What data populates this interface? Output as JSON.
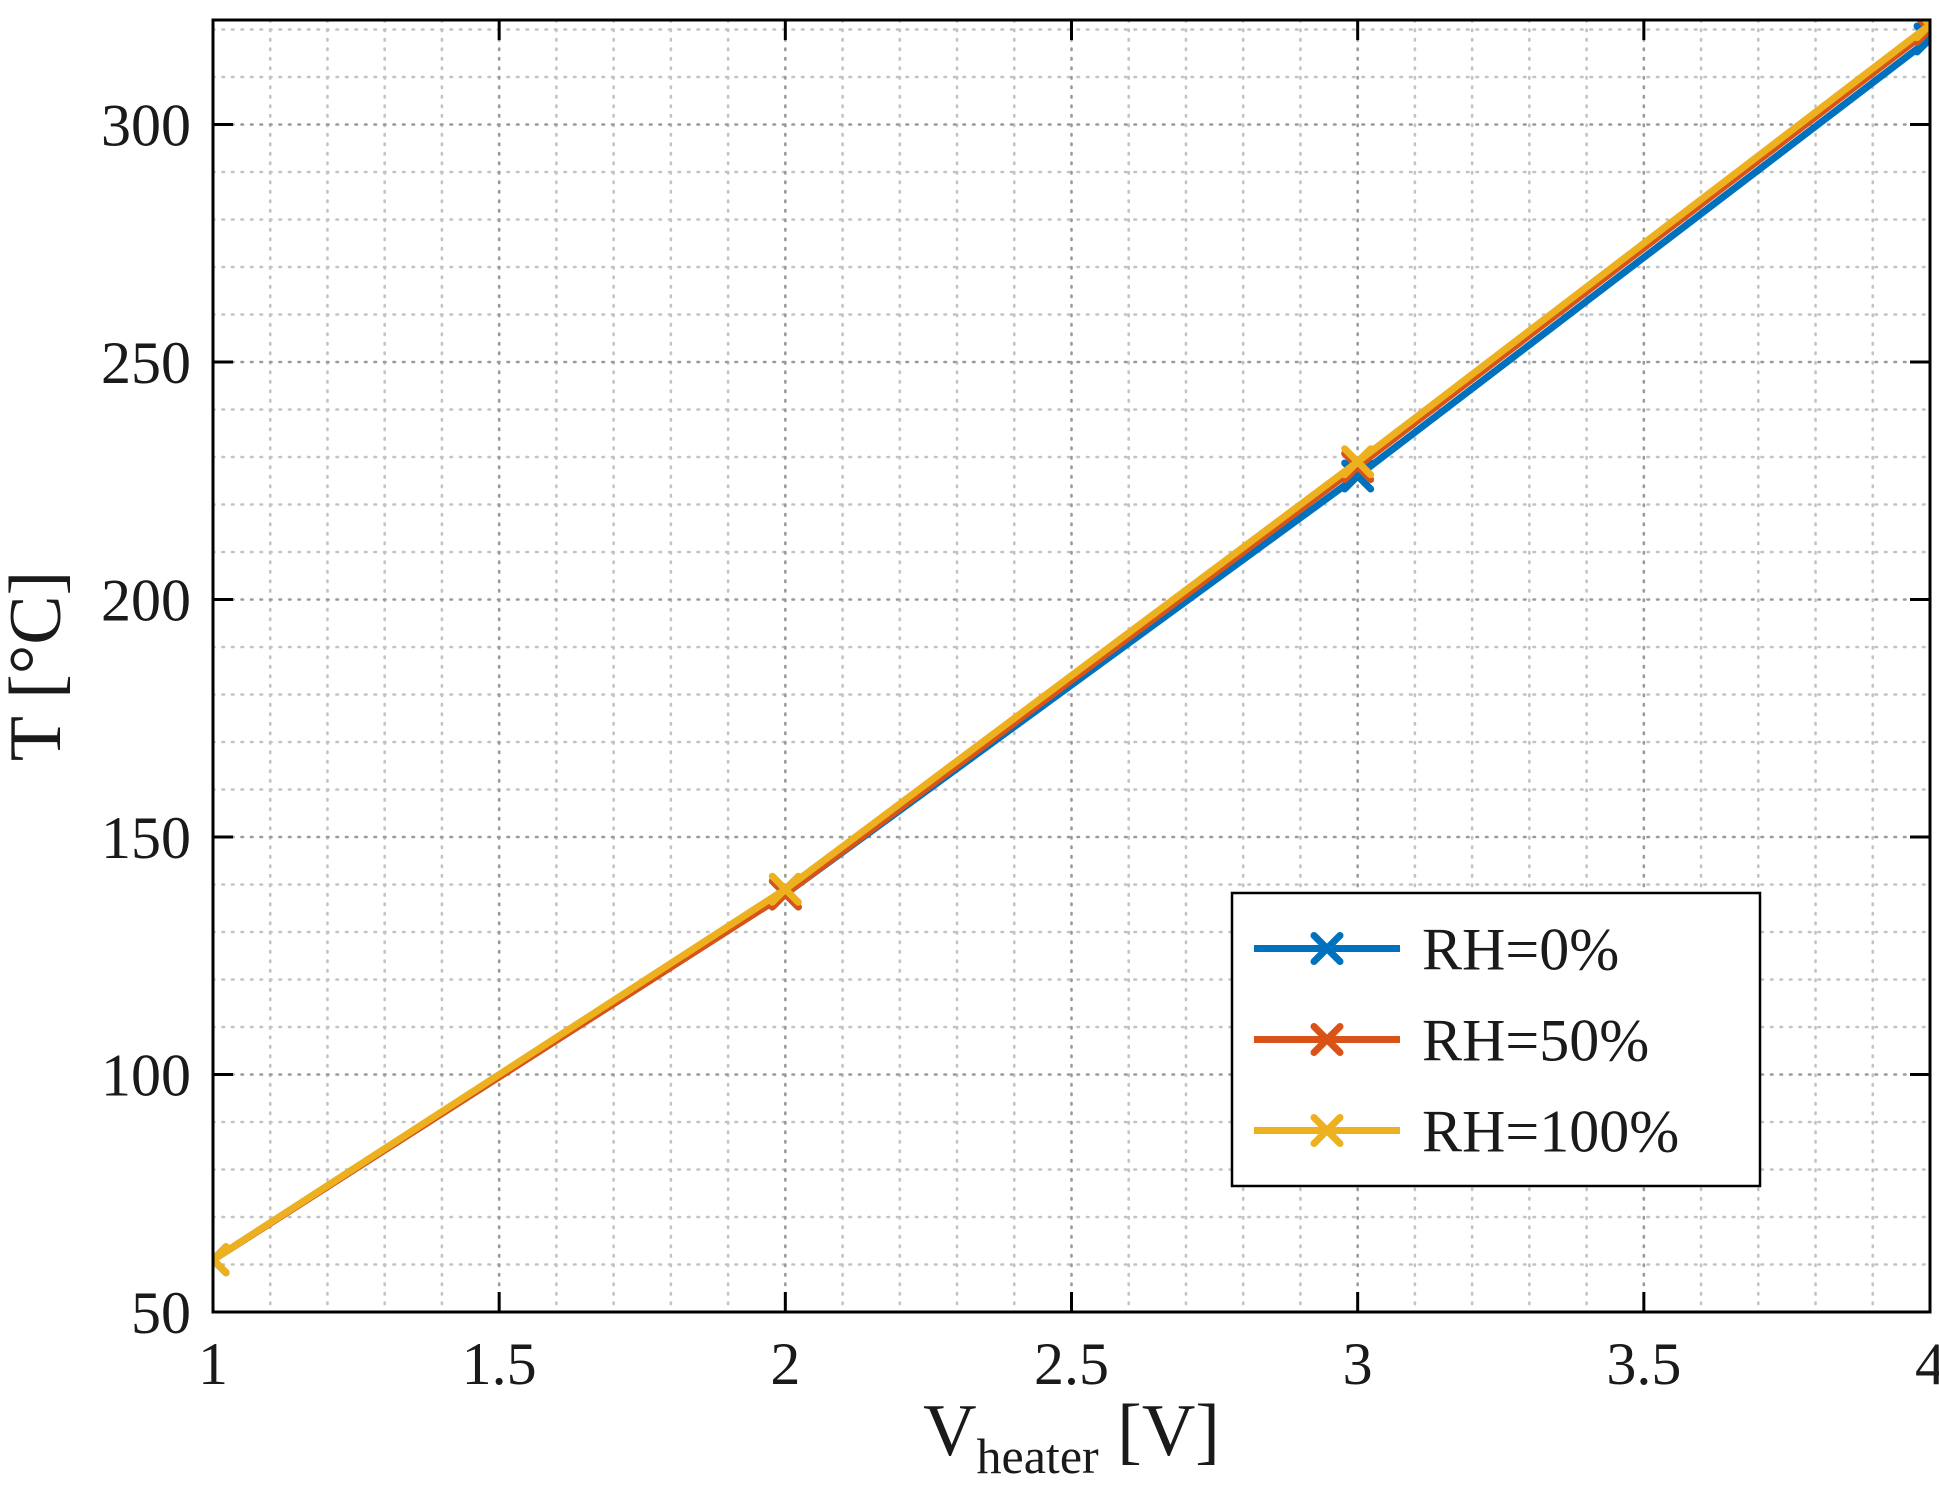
{
  "chart_data": {
    "type": "line",
    "x": [
      1,
      2,
      3,
      4
    ],
    "series": [
      {
        "name": "RH=0%",
        "color": "#0072BD",
        "values": [
          61,
          138,
          226,
          318
        ]
      },
      {
        "name": "RH=50%",
        "color": "#D95319",
        "values": [
          61,
          138,
          228,
          320
        ]
      },
      {
        "name": "RH=100%",
        "color": "#EDB120",
        "values": [
          61,
          139,
          229,
          321
        ]
      }
    ],
    "title": "",
    "xlabel_main": "V",
    "xlabel_sub": "heater",
    "xlabel_unit": " [V]",
    "ylabel": "T [°C]",
    "xlim": [
      1,
      4
    ],
    "ylim": [
      50,
      322
    ],
    "xticks": [
      1,
      1.5,
      2,
      2.5,
      3,
      3.5,
      4
    ],
    "xtick_labels": [
      "1",
      "1.5",
      "2",
      "2.5",
      "3",
      "3.5",
      "4"
    ],
    "yticks": [
      50,
      100,
      150,
      200,
      250,
      300
    ],
    "ytick_labels": [
      "50",
      "100",
      "150",
      "200",
      "250",
      "300"
    ],
    "minor_x_step": 0.1,
    "minor_y_step": 10,
    "grid": "on",
    "minor_grid": "on",
    "legend_position": "bottom-right",
    "colors": {
      "axis": "#000000",
      "major_grid": "#9a9a9a",
      "minor_grid": "#c3c3c3",
      "background": "#ffffff",
      "legend_border": "#000000",
      "legend_background": "#ffffff"
    }
  }
}
